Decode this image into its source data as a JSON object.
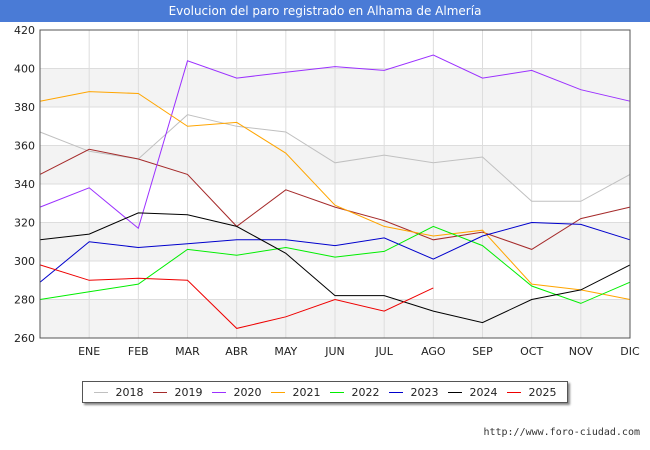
{
  "header": {
    "title": "Evolucion del paro registrado en Alhama de Almería"
  },
  "footer": {
    "url": "http://www.foro-ciudad.com"
  },
  "chart_data": {
    "type": "line",
    "title": "Evolucion del paro registrado en Alhama de Almería",
    "xlabel": "",
    "ylabel": "",
    "x_labels": [
      "",
      "ENE",
      "FEB",
      "MAR",
      "ABR",
      "MAY",
      "JUN",
      "JUL",
      "AGO",
      "SEP",
      "OCT",
      "NOV",
      "DIC"
    ],
    "ylim": [
      260,
      420
    ],
    "yticks": [
      260,
      280,
      300,
      320,
      340,
      360,
      380,
      400,
      420
    ],
    "grid": true,
    "legend_position": "bottom",
    "series": [
      {
        "name": "2018",
        "color": "#c0c0c0",
        "values": [
          367,
          357,
          353,
          376,
          370,
          367,
          351,
          355,
          351,
          354,
          331,
          331,
          345
        ]
      },
      {
        "name": "2019",
        "color": "#a52a2a",
        "values": [
          345,
          358,
          353,
          345,
          318,
          337,
          328,
          321,
          311,
          315,
          306,
          322,
          328
        ]
      },
      {
        "name": "2020",
        "color": "#9b30ff",
        "values": [
          328,
          338,
          317,
          404,
          395,
          398,
          401,
          399,
          407,
          395,
          399,
          389,
          383
        ]
      },
      {
        "name": "2021",
        "color": "#ffa500",
        "values": [
          383,
          388,
          387,
          370,
          372,
          356,
          329,
          318,
          313,
          316,
          288,
          285,
          280
        ]
      },
      {
        "name": "2022",
        "color": "#00ee00",
        "values": [
          280,
          284,
          288,
          306,
          303,
          307,
          302,
          305,
          318,
          308,
          287,
          278,
          289
        ]
      },
      {
        "name": "2023",
        "color": "#0000cc",
        "values": [
          289,
          310,
          307,
          309,
          311,
          311,
          308,
          312,
          301,
          313,
          320,
          319,
          311
        ]
      },
      {
        "name": "2024",
        "color": "#000000",
        "values": [
          311,
          314,
          325,
          324,
          318,
          304,
          282,
          282,
          274,
          268,
          280,
          285,
          298
        ]
      },
      {
        "name": "2025",
        "color": "#ee0000",
        "values": [
          298,
          290,
          291,
          290,
          265,
          271,
          280,
          274,
          286
        ]
      }
    ]
  }
}
